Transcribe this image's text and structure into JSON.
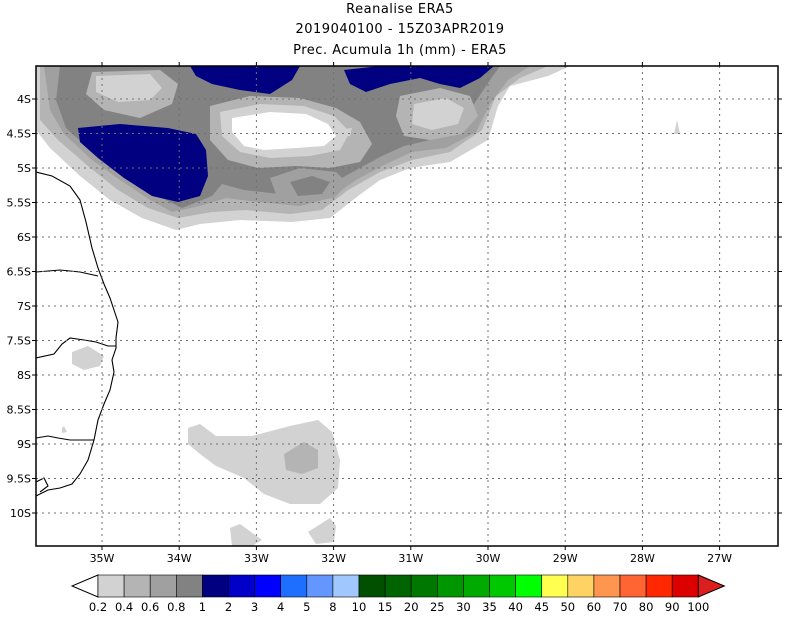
{
  "header": {
    "line1": "Reanalise ERA5",
    "line2": "2019040100 - 15Z03APR2019",
    "line3": "Prec. Acumula 1h (mm) - ERA5"
  },
  "map": {
    "lat_labels": [
      "4S",
      "4.5S",
      "5S",
      "5.5S",
      "6S",
      "6.5S",
      "7S",
      "7.5S",
      "8S",
      "8.5S",
      "9S",
      "9.5S",
      "10S"
    ],
    "lon_labels": [
      "35W",
      "34W",
      "33W",
      "32W",
      "31W",
      "30W",
      "29W",
      "28W",
      "27W"
    ],
    "lon_range": [
      "35.8W",
      "26.2W"
    ],
    "lat_range": [
      "3.7S",
      "10.5S"
    ],
    "grid": "dotted"
  },
  "colorbar": {
    "labels": [
      "0.2",
      "0.4",
      "0.6",
      "0.8",
      "1",
      "2",
      "3",
      "4",
      "5",
      "8",
      "10",
      "15",
      "20",
      "25",
      "30",
      "35",
      "40",
      "45",
      "50",
      "60",
      "70",
      "80",
      "90",
      "100"
    ],
    "colors": [
      "#ffffff",
      "#d2d2d2",
      "#b4b4b4",
      "#a0a0a0",
      "#828282",
      "#000080",
      "#0000c8",
      "#0000ff",
      "#1e6eff",
      "#6496ff",
      "#a0c8ff",
      "#005000",
      "#006400",
      "#007800",
      "#009600",
      "#00aa00",
      "#00c800",
      "#00ff00",
      "#ffff50",
      "#ffd264",
      "#ff9650",
      "#ff6432",
      "#ff2800",
      "#dc0000",
      "#dc1e1e"
    ]
  }
}
